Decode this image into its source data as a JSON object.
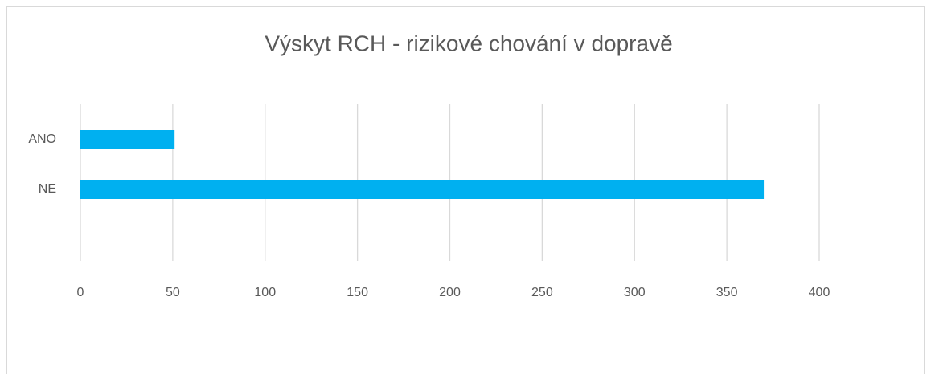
{
  "chart_data": {
    "type": "bar",
    "orientation": "horizontal",
    "title": "Výskyt RCH - rizikové chování v dopravě",
    "categories": [
      "ANO",
      "NE"
    ],
    "values": [
      51,
      370
    ],
    "color": "#00b0f0",
    "xlim": [
      0,
      400
    ],
    "xticks": [
      0,
      50,
      100,
      150,
      200,
      250,
      300,
      350,
      400
    ],
    "grid": true
  }
}
